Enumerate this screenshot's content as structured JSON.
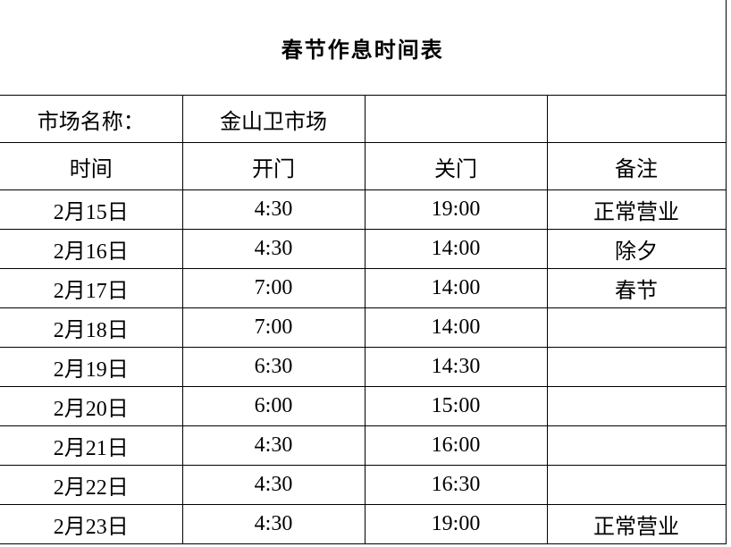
{
  "title": "春节作息时间表",
  "market": {
    "label": "市场名称：",
    "value": "金山卫市场"
  },
  "headers": [
    "时间",
    "开门",
    "关门",
    "备注"
  ],
  "rows": [
    [
      "2月15日",
      "4:30",
      "19:00",
      "正常营业"
    ],
    [
      "2月16日",
      "4:30",
      "14:00",
      "除夕"
    ],
    [
      "2月17日",
      "7:00",
      "14:00",
      "春节"
    ],
    [
      "2月18日",
      "7:00",
      "14:00",
      ""
    ],
    [
      "2月19日",
      "6:30",
      "14:30",
      ""
    ],
    [
      "2月20日",
      "6:00",
      "15:00",
      ""
    ],
    [
      "2月21日",
      "4:30",
      "16:00",
      ""
    ],
    [
      "2月22日",
      "4:30",
      "16:30",
      ""
    ],
    [
      "2月23日",
      "4:30",
      "19:00",
      "正常营业"
    ]
  ]
}
